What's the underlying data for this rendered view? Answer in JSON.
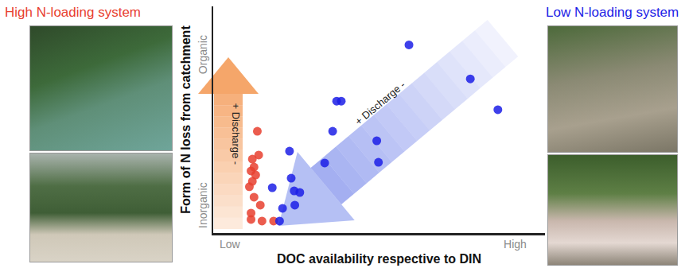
{
  "chart_data": {
    "type": "scatter",
    "x_label": "DOC availability respective to DIN",
    "y_label": "Form of N loss from catchment",
    "xlim": [
      0,
      1
    ],
    "ylim": [
      0,
      1
    ],
    "xticks": [
      {
        "value": 0.05,
        "label": "Low"
      },
      {
        "value": 0.91,
        "label": "High"
      }
    ],
    "yticks": [
      {
        "value": 0.115,
        "label": "Inorganic"
      },
      {
        "value": 0.78,
        "label": "Organic"
      }
    ],
    "grid": false,
    "annotations": [
      "+ Discharge -",
      "+ Discharge -"
    ],
    "series": [
      {
        "name": "High N-loading system",
        "color": "#e8402f",
        "x": [
          0.133,
          0.137,
          0.118,
          0.123,
          0.114,
          0.128,
          0.118,
          0.109,
          0.123,
          0.142,
          0.114,
          0.147,
          0.182,
          0.114
        ],
        "values": [
          0.449,
          0.344,
          0.326,
          0.291,
          0.274,
          0.256,
          0.228,
          0.204,
          0.158,
          0.123,
          0.088,
          0.053,
          0.053,
          0.06
        ]
      },
      {
        "name": "Low N-loading system",
        "color": "#1c1ee6",
        "x": [
          0.59,
          0.775,
          0.858,
          0.372,
          0.386,
          0.36,
          0.493,
          0.498,
          0.336,
          0.23,
          0.235,
          0.244,
          0.261,
          0.209,
          0.178,
          0.246,
          0.2
        ],
        "values": [
          0.83,
          0.68,
          0.544,
          0.582,
          0.582,
          0.449,
          0.407,
          0.312,
          0.309,
          0.361,
          0.242,
          0.186,
          0.179,
          0.109,
          0.2,
          0.123,
          0.053
        ]
      }
    ]
  }
}
